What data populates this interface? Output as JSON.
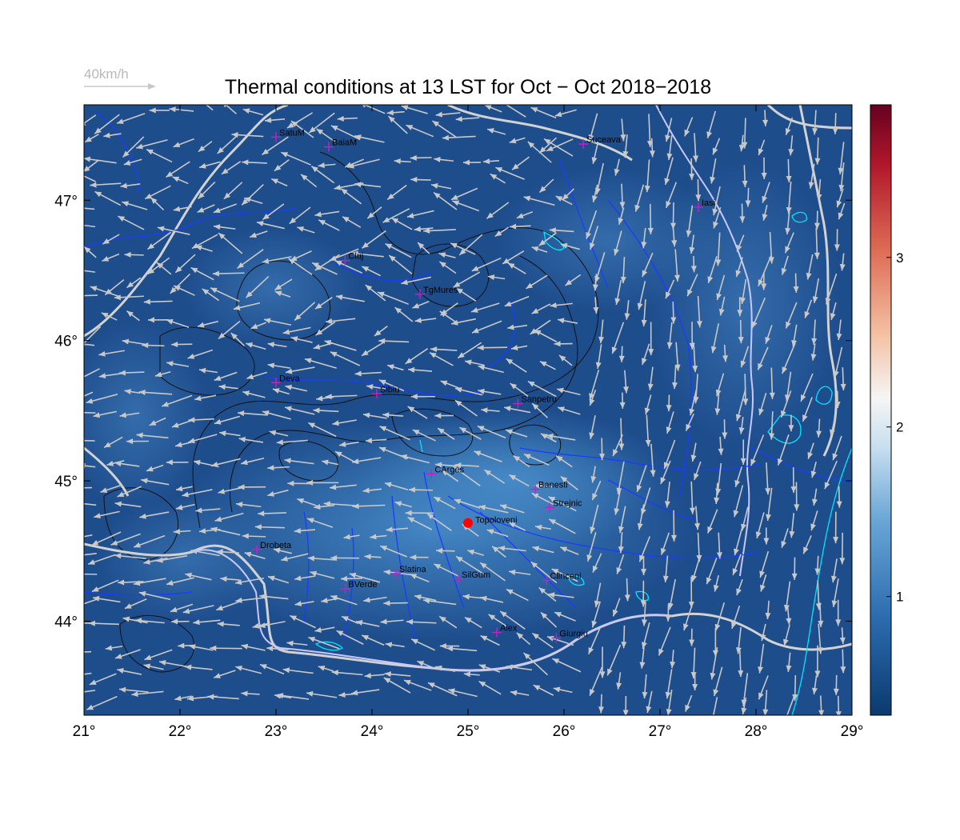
{
  "title": "Thermal conditions at 13 LST for Oct − Oct  2018−2018",
  "wind_scale": {
    "label": "40km/h"
  },
  "colors": {
    "map_base": "#1e4d8c",
    "map_light": "#3b7fc0",
    "wind_arrow": "#c8c8c8",
    "river": "#1a3cff",
    "border": "#d2d2d2",
    "lake": "#00e5ff",
    "city_marker": "#c81ec8",
    "highlight": "#ff0000"
  },
  "x_axis": {
    "ticks": [
      "21°",
      "22°",
      "23°",
      "24°",
      "25°",
      "26°",
      "27°",
      "28°",
      "29°"
    ]
  },
  "y_axis": {
    "ticks": [
      "47°",
      "46°",
      "45°",
      "44°"
    ]
  },
  "colorbar": {
    "ticks": [
      "3",
      "2",
      "1"
    ],
    "colormap": "blue-white-red (diverging)"
  },
  "cities": [
    {
      "name": "SatuM",
      "lon": 23.0,
      "lat": 47.45
    },
    {
      "name": "BaiaM",
      "lon": 23.55,
      "lat": 47.38
    },
    {
      "name": "Suceava",
      "lon": 26.2,
      "lat": 47.4
    },
    {
      "name": "Iasi",
      "lon": 27.4,
      "lat": 46.95
    },
    {
      "name": "Cluj",
      "lon": 23.72,
      "lat": 46.57
    },
    {
      "name": "TgMures",
      "lon": 24.5,
      "lat": 46.33
    },
    {
      "name": "Deva",
      "lon": 23.0,
      "lat": 45.7
    },
    {
      "name": "Sibiu",
      "lon": 24.05,
      "lat": 45.62
    },
    {
      "name": "Sanpetru",
      "lon": 25.52,
      "lat": 45.55
    },
    {
      "name": "CArges",
      "lon": 24.62,
      "lat": 45.05
    },
    {
      "name": "Banesti",
      "lon": 25.7,
      "lat": 44.94
    },
    {
      "name": "Strejnic",
      "lon": 25.85,
      "lat": 44.81
    },
    {
      "name": "Drobeta",
      "lon": 22.8,
      "lat": 44.51
    },
    {
      "name": "Slatina",
      "lon": 24.25,
      "lat": 44.34
    },
    {
      "name": "SilGum",
      "lon": 24.9,
      "lat": 44.3
    },
    {
      "name": "Clinceni",
      "lon": 25.82,
      "lat": 44.29
    },
    {
      "name": "BVerde",
      "lon": 23.72,
      "lat": 44.23
    },
    {
      "name": "Alex",
      "lon": 25.3,
      "lat": 43.92
    },
    {
      "name": "Giurgiu",
      "lon": 25.92,
      "lat": 43.88
    }
  ],
  "highlight_site": {
    "name": "Topoloveni",
    "lon": 25.0,
    "lat": 44.7
  }
}
